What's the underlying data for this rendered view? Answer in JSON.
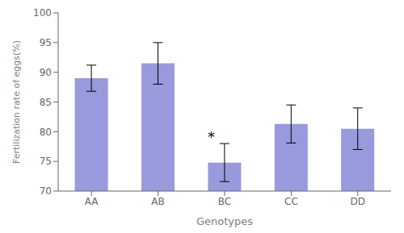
{
  "chart_data": {
    "type": "bar",
    "categories": [
      "AA",
      "AB",
      "BC",
      "CC",
      "DD"
    ],
    "values": [
      89.0,
      91.5,
      74.8,
      81.3,
      80.5
    ],
    "errors": [
      2.2,
      3.5,
      3.2,
      3.2,
      3.5
    ],
    "color": "#9999DD",
    "xlabel": "Genotypes",
    "ylabel": "Fertilization rate of eggs(%)",
    "ylim": [
      70,
      100
    ],
    "yticks": [
      70,
      75,
      80,
      85,
      90,
      95,
      100
    ],
    "grid": false,
    "annotations": [
      {
        "category": "BC",
        "text": "*"
      }
    ]
  }
}
